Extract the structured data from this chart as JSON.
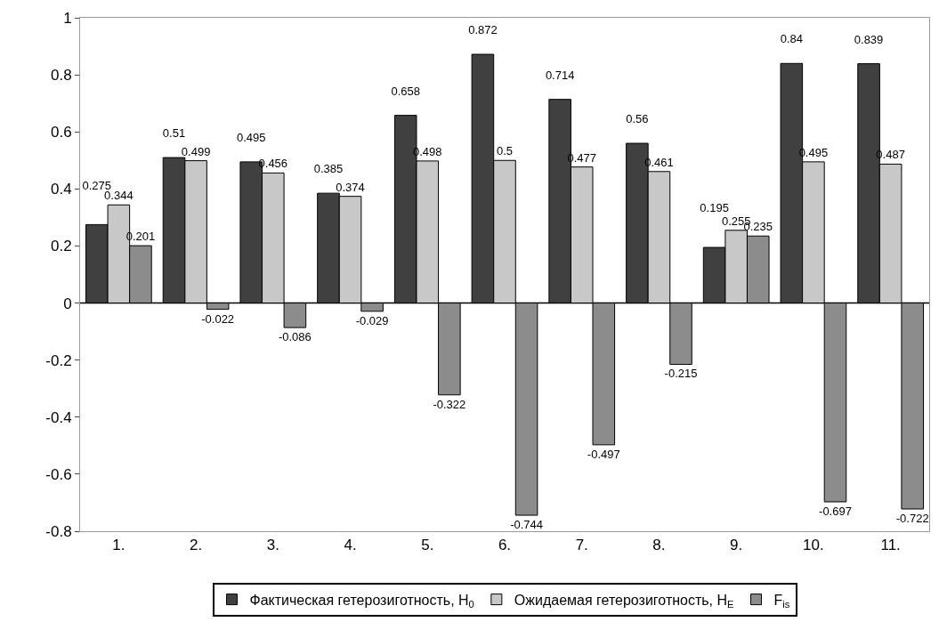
{
  "chart_data": {
    "type": "bar",
    "categories": [
      "1.",
      "2.",
      "3.",
      "4.",
      "5.",
      "6.",
      "7.",
      "8.",
      "9.",
      "10.",
      "11."
    ],
    "series": [
      {
        "name": "Фактическая гетерозиготность, H$_{0}$",
        "color": "#404040",
        "values": [
          0.275,
          0.51,
          0.495,
          0.385,
          0.658,
          0.872,
          0.714,
          0.56,
          0.195,
          0.84,
          0.839
        ]
      },
      {
        "name": "Ожидаемая гетерозиготность, H$_{E}$",
        "color": "#c8c8c8",
        "values": [
          0.344,
          0.499,
          0.456,
          0.374,
          0.498,
          0.5,
          0.477,
          0.461,
          0.255,
          0.495,
          0.487
        ]
      },
      {
        "name": "F$_{is}$",
        "color": "#8c8c8c",
        "values": [
          0.201,
          -0.022,
          -0.086,
          -0.029,
          -0.322,
          -0.744,
          -0.497,
          -0.215,
          0.235,
          -0.697,
          -0.722
        ]
      }
    ],
    "ylim": [
      -0.8,
      1
    ],
    "yticks": [
      -0.8,
      -0.6,
      -0.4,
      -0.2,
      0,
      0.2,
      0.4,
      0.6,
      0.8,
      1
    ],
    "ref_lines": [
      {
        "axis": "y",
        "value": 0,
        "color": "#000000"
      }
    ],
    "data_labels": true,
    "grid": false,
    "legend": "bottom"
  }
}
